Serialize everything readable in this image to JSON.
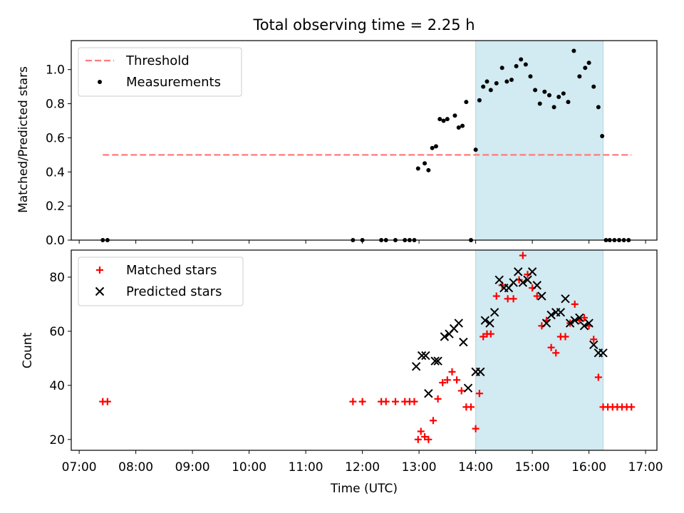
{
  "chart_data": [
    {
      "type": "scatter",
      "title": "Total observing time = 2.25 h",
      "ylabel": "Matched/Predicted stars",
      "xlabel": "",
      "xlim": [
        "07:00",
        "17:00"
      ],
      "ylim": [
        0.0,
        1.17
      ],
      "x_ticks": [
        "07:00",
        "08:00",
        "09:00",
        "10:00",
        "11:00",
        "12:00",
        "13:00",
        "14:00",
        "15:00",
        "16:00",
        "17:00"
      ],
      "y_ticks": [
        "0.0",
        "0.2",
        "0.4",
        "0.6",
        "0.8",
        "1.0"
      ],
      "y_tick_values": [
        0.0,
        0.2,
        0.4,
        0.6,
        0.8,
        1.0
      ],
      "legend_position": "top-left",
      "highlight_band": {
        "x_start": "14:00",
        "x_end": "16:15",
        "color": "#add8e6"
      },
      "threshold": {
        "name": "Threshold",
        "y": 0.5,
        "x_start": "07:25",
        "x_end": "16:45",
        "color": "#ff7a7a",
        "style": "dashed"
      },
      "series": [
        {
          "name": "Measurements",
          "color": "#000000",
          "marker": "dot",
          "x": [
            "07:25",
            "07:30",
            "11:50",
            "12:00",
            "12:20",
            "12:25",
            "12:35",
            "12:45",
            "12:50",
            "12:55",
            "12:59",
            "13:06",
            "13:10",
            "13:14",
            "13:18",
            "13:22",
            "13:26",
            "13:30",
            "13:38",
            "13:42",
            "13:46",
            "13:50",
            "13:55",
            "14:00",
            "14:04",
            "14:08",
            "14:12",
            "14:16",
            "14:22",
            "14:28",
            "14:33",
            "14:38",
            "14:43",
            "14:48",
            "14:53",
            "14:58",
            "15:03",
            "15:08",
            "15:13",
            "15:18",
            "15:23",
            "15:28",
            "15:33",
            "15:38",
            "15:44",
            "15:50",
            "15:56",
            "16:00",
            "16:05",
            "16:10",
            "16:14",
            "16:18",
            "16:22",
            "16:27",
            "16:32",
            "16:37",
            "16:42"
          ],
          "y": [
            0.0,
            0.0,
            0.0,
            0.0,
            0.0,
            0.0,
            0.0,
            0.0,
            0.0,
            0.0,
            0.42,
            0.45,
            0.41,
            0.54,
            0.55,
            0.71,
            0.7,
            0.71,
            0.73,
            0.66,
            0.67,
            0.81,
            0.0,
            0.53,
            0.82,
            0.9,
            0.93,
            0.88,
            0.92,
            1.01,
            0.93,
            0.94,
            1.02,
            1.06,
            1.03,
            0.96,
            0.88,
            0.8,
            0.87,
            0.85,
            0.78,
            0.84,
            0.86,
            0.81,
            1.11,
            0.96,
            1.01,
            1.04,
            0.9,
            0.78,
            0.61,
            0.0,
            0.0,
            0.0,
            0.0,
            0.0,
            0.0
          ]
        }
      ]
    },
    {
      "type": "scatter",
      "title": "",
      "ylabel": "Count",
      "xlabel": "Time (UTC)",
      "xlim": [
        "07:00",
        "17:00"
      ],
      "ylim": [
        16,
        90
      ],
      "x_ticks": [
        "07:00",
        "08:00",
        "09:00",
        "10:00",
        "11:00",
        "12:00",
        "13:00",
        "14:00",
        "15:00",
        "16:00",
        "17:00"
      ],
      "y_ticks": [
        "20",
        "40",
        "60",
        "80"
      ],
      "y_tick_values": [
        20,
        40,
        60,
        80
      ],
      "legend_position": "top-left",
      "highlight_band": {
        "x_start": "14:00",
        "x_end": "16:15",
        "color": "#add8e6"
      },
      "series": [
        {
          "name": "Matched stars",
          "color": "#ff0000",
          "marker": "plus",
          "x": [
            "07:25",
            "07:30",
            "11:50",
            "12:00",
            "12:20",
            "12:25",
            "12:35",
            "12:45",
            "12:50",
            "12:55",
            "12:59",
            "13:02",
            "13:06",
            "13:10",
            "13:15",
            "13:20",
            "13:25",
            "13:30",
            "13:35",
            "13:40",
            "13:45",
            "13:50",
            "13:55",
            "14:00",
            "14:04",
            "14:08",
            "14:12",
            "14:16",
            "14:22",
            "14:28",
            "14:34",
            "14:40",
            "14:46",
            "14:50",
            "14:55",
            "15:00",
            "15:05",
            "15:10",
            "15:15",
            "15:20",
            "15:25",
            "15:30",
            "15:35",
            "15:40",
            "15:45",
            "15:50",
            "15:55",
            "16:00",
            "16:05",
            "16:10",
            "16:15",
            "16:20",
            "16:25",
            "16:30",
            "16:35",
            "16:40",
            "16:45"
          ],
          "y": [
            34,
            34,
            34,
            34,
            34,
            34,
            34,
            34,
            34,
            34,
            20,
            23,
            21,
            20,
            27,
            35,
            41,
            42,
            45,
            42,
            38,
            32,
            32,
            24,
            37,
            58,
            59,
            59,
            73,
            77,
            72,
            72,
            79,
            88,
            81,
            76,
            73,
            62,
            64,
            54,
            52,
            58,
            58,
            63,
            70,
            64,
            65,
            62,
            57,
            43,
            32,
            32,
            32,
            32,
            32,
            32,
            32
          ]
        },
        {
          "name": "Predicted stars",
          "color": "#000000",
          "marker": "cross",
          "x": [
            "12:57",
            "13:03",
            "13:07",
            "13:10",
            "13:17",
            "13:20",
            "13:27",
            "13:32",
            "13:37",
            "13:42",
            "13:47",
            "13:52",
            "14:00",
            "14:05",
            "14:10",
            "14:15",
            "14:20",
            "14:25",
            "14:30",
            "14:35",
            "14:40",
            "14:45",
            "14:50",
            "14:55",
            "15:00",
            "15:05",
            "15:10",
            "15:15",
            "15:20",
            "15:25",
            "15:30",
            "15:35",
            "15:40",
            "15:45",
            "15:50",
            "15:55",
            "16:00",
            "16:05",
            "16:10",
            "16:15"
          ],
          "y": [
            47,
            51,
            51,
            37,
            49,
            49,
            58,
            59,
            61,
            63,
            56,
            39,
            45,
            45,
            64,
            63,
            67,
            79,
            76,
            76,
            78,
            82,
            78,
            79,
            82,
            77,
            73,
            63,
            66,
            67,
            67,
            72,
            63,
            64,
            65,
            62,
            63,
            55,
            52,
            52
          ]
        }
      ]
    }
  ]
}
